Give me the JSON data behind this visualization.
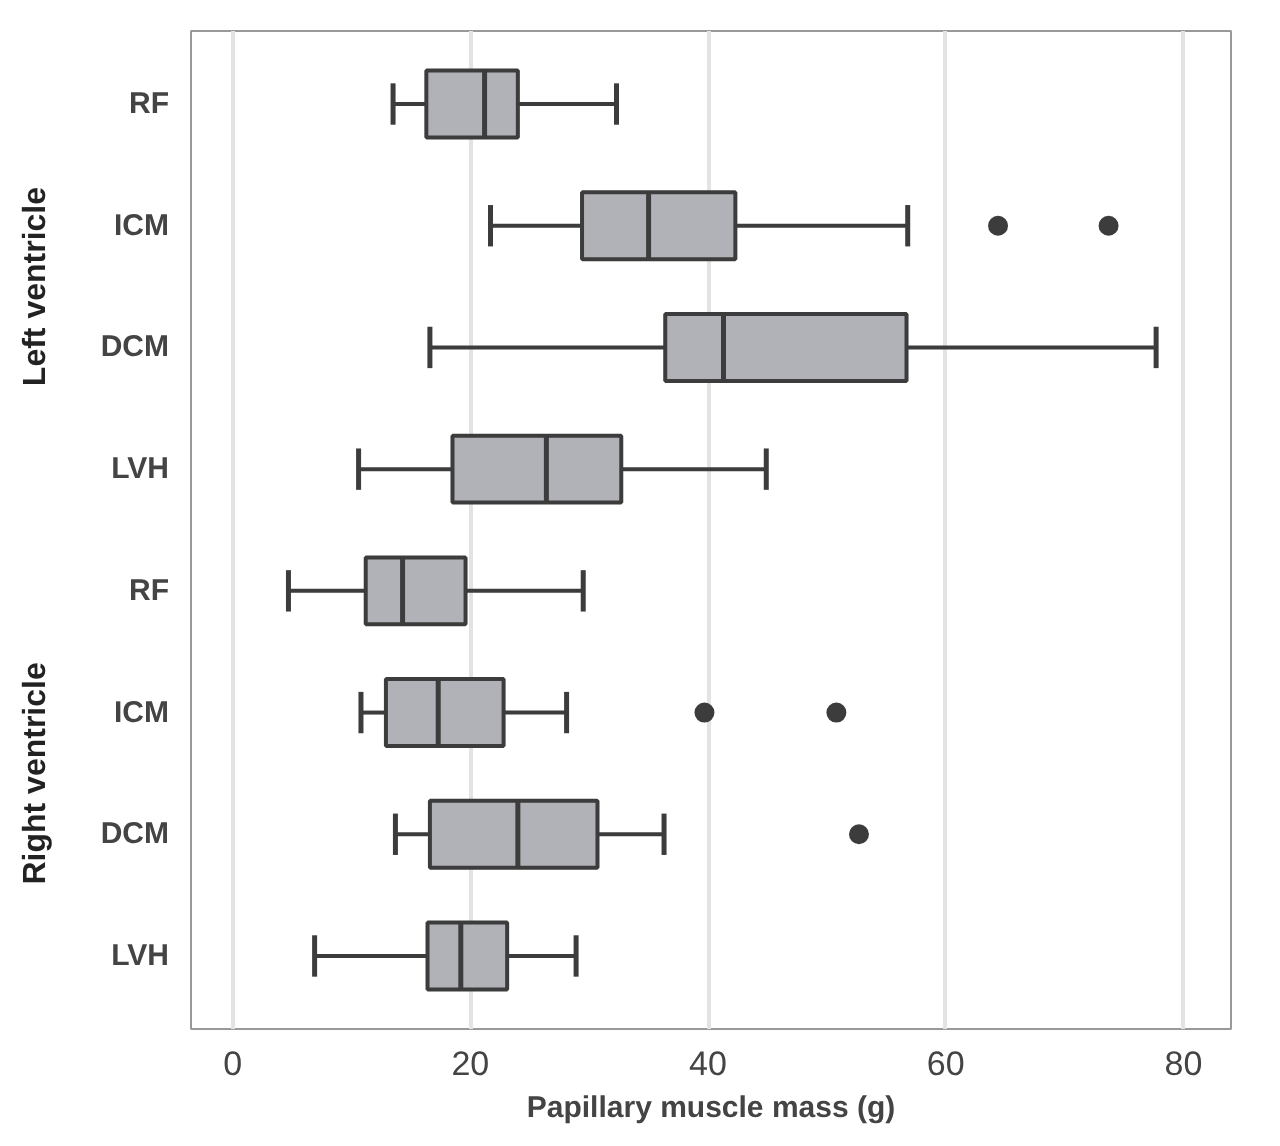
{
  "chart_data": {
    "type": "box",
    "orientation": "horizontal",
    "xlabel": "Papillary muscle mass (g)",
    "categories": [
      "RF",
      "ICM",
      "DCM",
      "LVH",
      "RF",
      "ICM",
      "DCM",
      "LVH"
    ],
    "annotations": [
      "Left ventricle",
      "Right ventricle"
    ],
    "series": [
      {
        "color": "#b1b2b7",
        "boxes": [
          {
            "low": 13.5,
            "q1": 16.3,
            "median": 21.2,
            "q3": 24.0,
            "high": 32.3
          },
          {
            "low": 21.7,
            "q1": 29.4,
            "median": 35.0,
            "q3": 42.3,
            "high": 56.8,
            "outliers": [
              64.4,
              73.7
            ]
          },
          {
            "low": 16.6,
            "q1": 36.4,
            "median": 41.3,
            "q3": 56.7,
            "high": 77.7
          },
          {
            "low": 10.6,
            "q1": 18.5,
            "median": 26.4,
            "q3": 32.7,
            "high": 44.9
          },
          {
            "low": 4.7,
            "q1": 11.2,
            "median": 14.3,
            "q3": 19.6,
            "high": 29.5
          },
          {
            "low": 10.8,
            "q1": 12.9,
            "median": 17.3,
            "q3": 22.8,
            "high": 28.1,
            "outliers": [
              39.7,
              50.8
            ]
          },
          {
            "low": 13.7,
            "q1": 16.6,
            "median": 24.0,
            "q3": 30.7,
            "high": 36.3,
            "outliers": [
              52.7
            ]
          },
          {
            "low": 6.9,
            "q1": 16.4,
            "median": 19.2,
            "q3": 23.1,
            "high": 28.9
          }
        ]
      }
    ],
    "xlim": [
      -3.5,
      84
    ],
    "xticks": [
      0,
      20,
      40,
      60,
      80
    ],
    "grid": "x"
  }
}
